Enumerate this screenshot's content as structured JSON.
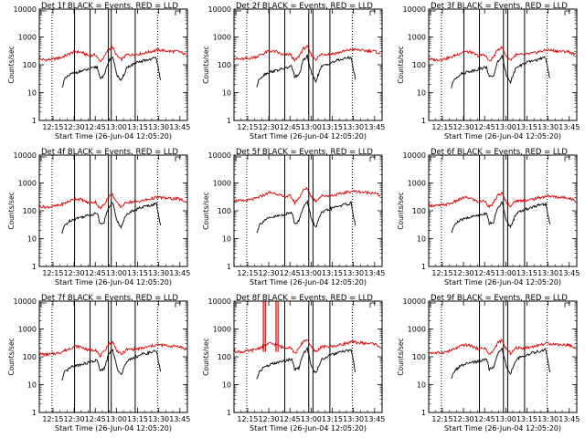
{
  "chart_data": {
    "type": "line",
    "layout": "3x3 grid",
    "scale": "log-y",
    "ylim": [
      1,
      10000
    ],
    "yticks": [
      1,
      10,
      100,
      1000,
      10000
    ],
    "ytick_labels": [
      "1",
      "10",
      "100",
      "1000",
      "10000"
    ],
    "ylabel": "Counts/sec",
    "xlabel": "Start Time (26-Jun-04 12:05:20)",
    "xlim_minutes": [
      0,
      105
    ],
    "xticks_minutes": [
      9.67,
      24.67,
      39.67,
      54.67,
      69.67,
      84.67,
      99.67
    ],
    "xtick_labels": [
      "12:15",
      "12:30",
      "12:45",
      "13:00",
      "13:15",
      "13:30",
      "13:45"
    ],
    "title_suffix": "BLACK = Events, RED = LLD",
    "colors": {
      "events": "#000000",
      "lld": "#dd0000",
      "axes": "#000000"
    },
    "series_template": {
      "events": {
        "color": "#000000",
        "x_minutes": [
          16,
          18,
          22,
          27,
          33,
          38,
          41,
          43,
          46,
          49,
          52,
          55,
          58,
          62,
          66,
          70,
          74,
          79,
          83,
          86
        ],
        "values": [
          15,
          30,
          45,
          55,
          65,
          75,
          85,
          35,
          40,
          130,
          200,
          45,
          25,
          80,
          100,
          120,
          140,
          160,
          180,
          30
        ]
      },
      "lld": {
        "color": "#dd0000",
        "x_minutes": [
          0,
          5,
          10,
          15,
          20,
          25,
          30,
          35,
          40,
          43,
          46,
          49,
          52,
          55,
          58,
          62,
          66,
          70,
          74,
          79,
          84,
          89,
          94,
          99,
          104
        ],
        "values": [
          160,
          150,
          160,
          180,
          230,
          300,
          280,
          210,
          230,
          130,
          190,
          360,
          420,
          210,
          150,
          230,
          230,
          240,
          260,
          300,
          340,
          320,
          300,
          300,
          230
        ]
      }
    },
    "panels": [
      {
        "detector": "Det 1f",
        "solid_lines": [
          25,
          36,
          49,
          51,
          68
        ],
        "dotted_lines": [
          9,
          84
        ],
        "events_scale": 1.0,
        "lld_scale": 1.0,
        "spikes": []
      },
      {
        "detector": "Det 2f",
        "solid_lines": [
          25,
          36,
          53,
          56,
          68
        ],
        "dotted_lines": [
          9,
          84
        ],
        "events_scale": 1.05,
        "lld_scale": 1.05,
        "spikes": []
      },
      {
        "detector": "Det 3f",
        "solid_lines": [
          25,
          36,
          53,
          56,
          68
        ],
        "dotted_lines": [
          9,
          84
        ],
        "events_scale": 1.0,
        "lld_scale": 1.0,
        "spikes": []
      },
      {
        "detector": "Det 4f",
        "solid_lines": [
          25,
          36,
          49,
          51,
          68
        ],
        "dotted_lines": [
          9,
          84
        ],
        "events_scale": 1.0,
        "lld_scale": 0.9,
        "spikes": []
      },
      {
        "detector": "Det 5f",
        "solid_lines": [
          36,
          53,
          56,
          68
        ],
        "dotted_lines": [
          9,
          84
        ],
        "events_scale": 1.05,
        "lld_scale": 1.5,
        "spikes": []
      },
      {
        "detector": "Det 6f",
        "solid_lines": [
          36,
          53,
          56,
          68
        ],
        "dotted_lines": [
          9,
          84
        ],
        "events_scale": 1.0,
        "lld_scale": 1.0,
        "spikes": []
      },
      {
        "detector": "Det 7f",
        "solid_lines": [
          25,
          36,
          49,
          51,
          68
        ],
        "dotted_lines": [
          9,
          84
        ],
        "events_scale": 0.9,
        "lld_scale": 0.8,
        "spikes": []
      },
      {
        "detector": "Det 8f",
        "solid_lines": [
          36,
          53,
          56,
          68
        ],
        "dotted_lines": [
          9,
          84
        ],
        "events_scale": 1.0,
        "lld_scale": 1.0,
        "spikes": [
          {
            "x_minutes": 20.8,
            "value": 10000
          },
          {
            "x_minutes": 22.2,
            "value": 10000
          },
          {
            "x_minutes": 29.8,
            "value": 10000
          },
          {
            "x_minutes": 31.2,
            "value": 10000
          }
        ]
      },
      {
        "detector": "Det 9f",
        "solid_lines": [
          36,
          53,
          56,
          68
        ],
        "dotted_lines": [
          9,
          84
        ],
        "events_scale": 1.0,
        "lld_scale": 0.9,
        "spikes": []
      }
    ]
  }
}
